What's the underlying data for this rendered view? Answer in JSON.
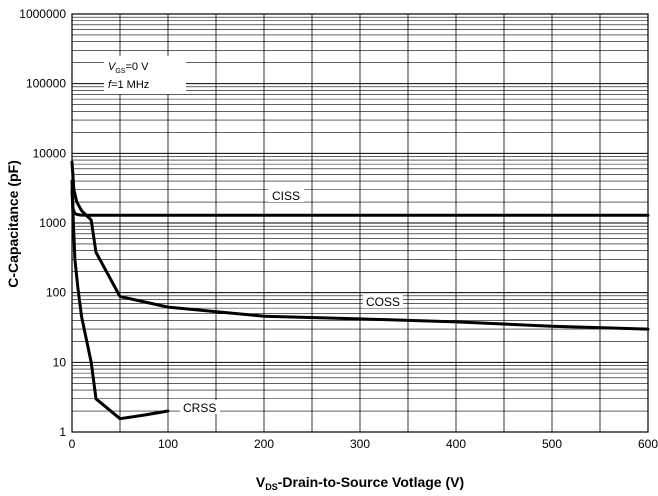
{
  "chart_data": {
    "type": "line",
    "title": "",
    "xlabel_prefix": "V",
    "xlabel_sub": "DS",
    "xlabel_rest": "-Drain-to-Source Votlage (V)",
    "ylabel": "C-Capacitance (pF)",
    "xlim": [
      0,
      600
    ],
    "ylim": [
      1,
      1000000
    ],
    "yscale": "log",
    "grid": true,
    "x_ticks": [
      0,
      100,
      200,
      300,
      400,
      500,
      600
    ],
    "x_tick_labels": [
      "0",
      "100",
      "200",
      "300",
      "400",
      "500",
      "600"
    ],
    "y_ticks": [
      1,
      10,
      100,
      1000,
      10000,
      100000,
      1000000
    ],
    "y_tick_labels": [
      "1",
      "10",
      "100",
      "1000",
      "10000",
      "100000",
      "1000000"
    ],
    "conditions": {
      "vgs_prefix": "V",
      "vgs_sub": "GS",
      "vgs_rest": "=0 V",
      "freq_italic": "f",
      "freq_rest": "=1 MHz"
    },
    "series": [
      {
        "name": "CISS",
        "x": [
          0,
          1,
          3,
          6,
          10,
          20,
          50,
          100,
          200,
          300,
          400,
          500,
          600
        ],
        "y": [
          4000,
          1600,
          1360,
          1320,
          1300,
          1290,
          1290,
          1290,
          1290,
          1290,
          1290,
          1290,
          1290
        ]
      },
      {
        "name": "COSS",
        "x": [
          0,
          2,
          5,
          10,
          20,
          25,
          50,
          100,
          200,
          300,
          400,
          500,
          600
        ],
        "y": [
          7500,
          3000,
          2000,
          1500,
          1100,
          380,
          88,
          62,
          46,
          42,
          38,
          33,
          30
        ]
      },
      {
        "name": "CRSS",
        "x": [
          0,
          3,
          6,
          10,
          20,
          25,
          50,
          75,
          100
        ],
        "y": [
          3000,
          300,
          120,
          45,
          10,
          3,
          1.55,
          1.75,
          2
        ]
      }
    ],
    "series_color": "#000000",
    "grid_color": "#000000"
  }
}
